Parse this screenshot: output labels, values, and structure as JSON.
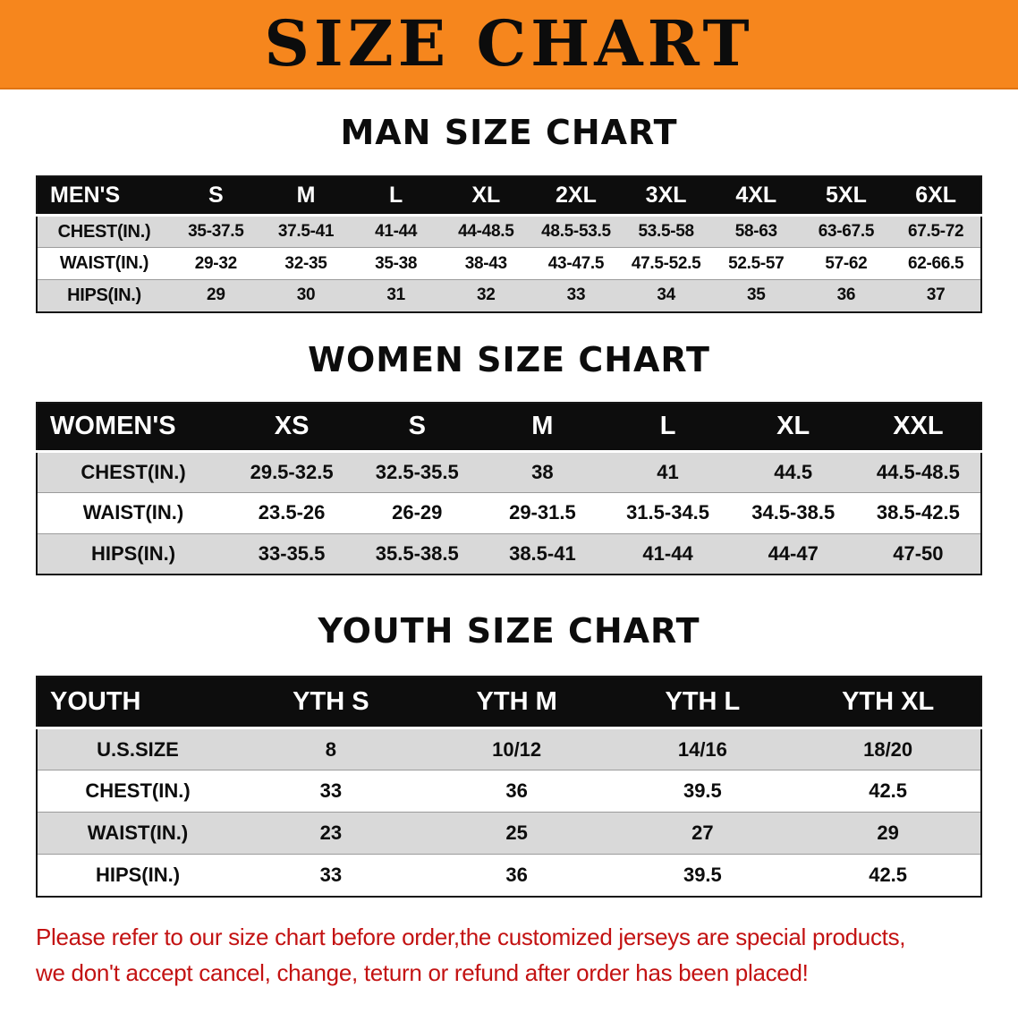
{
  "banner": {
    "title": "SIZE CHART",
    "bg_color": "#f6861d",
    "text_color": "#0c0c0c"
  },
  "sections": [
    {
      "heading": "MAN SIZE CHART",
      "table": {
        "header": [
          "MEN'S",
          "S",
          "M",
          "L",
          "XL",
          "2XL",
          "3XL",
          "4XL",
          "5XL",
          "6XL"
        ],
        "rows": [
          [
            "CHEST(IN.)",
            "35-37.5",
            "37.5-41",
            "41-44",
            "44-48.5",
            "48.5-53.5",
            "53.5-58",
            "58-63",
            "63-67.5",
            "67.5-72"
          ],
          [
            "WAIST(IN.)",
            "29-32",
            "32-35",
            "35-38",
            "38-43",
            "43-47.5",
            "47.5-52.5",
            "52.5-57",
            "57-62",
            "62-66.5"
          ],
          [
            "HIPS(IN.)",
            "29",
            "30",
            "31",
            "32",
            "33",
            "34",
            "35",
            "36",
            "37"
          ]
        ]
      }
    },
    {
      "heading": "WOMEN SIZE CHART",
      "table": {
        "header": [
          "WOMEN'S",
          "XS",
          "S",
          "M",
          "L",
          "XL",
          "XXL"
        ],
        "rows": [
          [
            "CHEST(IN.)",
            "29.5-32.5",
            "32.5-35.5",
            "38",
            "41",
            "44.5",
            "44.5-48.5"
          ],
          [
            "WAIST(IN.)",
            "23.5-26",
            "26-29",
            "29-31.5",
            "31.5-34.5",
            "34.5-38.5",
            "38.5-42.5"
          ],
          [
            "HIPS(IN.)",
            "33-35.5",
            "35.5-38.5",
            "38.5-41",
            "41-44",
            "44-47",
            "47-50"
          ]
        ]
      }
    },
    {
      "heading": "YOUTH SIZE CHART",
      "table": {
        "header": [
          "YOUTH",
          "YTH S",
          "YTH M",
          "YTH L",
          "YTH XL"
        ],
        "rows": [
          [
            "U.S.SIZE",
            "8",
            "10/12",
            "14/16",
            "18/20"
          ],
          [
            "CHEST(IN.)",
            "33",
            "36",
            "39.5",
            "42.5"
          ],
          [
            "WAIST(IN.)",
            "23",
            "25",
            "27",
            "29"
          ],
          [
            "HIPS(IN.)",
            "33",
            "36",
            "39.5",
            "42.5"
          ]
        ]
      }
    }
  ],
  "footer": {
    "line1": "Please refer to our size chart before order,the customized jerseys are special products,",
    "line2": "we don't accept cancel, change, teturn or refund after order has been placed!",
    "text_color": "#c31212"
  },
  "colors": {
    "table_header_bg": "#0d0d0d",
    "table_alt_row_bg": "#d9d9d9",
    "banner_bg": "#f6861d",
    "notice_red": "#c31212"
  }
}
